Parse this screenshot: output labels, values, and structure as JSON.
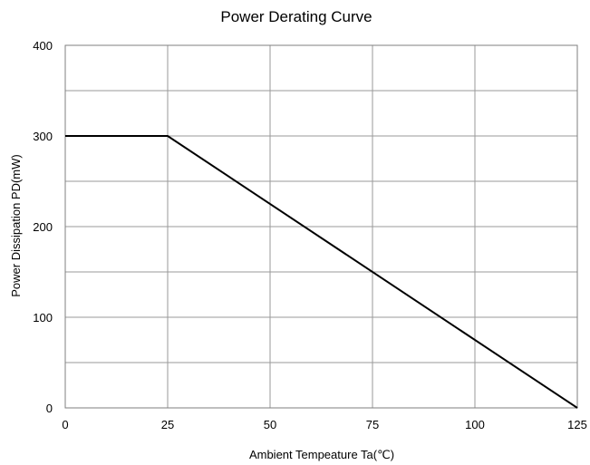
{
  "chart_data": {
    "type": "line",
    "title": "Power Derating Curve",
    "xlabel": "Ambient Tempeature Ta(℃)",
    "ylabel": "Power Dissipation  PD(mW)",
    "xlim": [
      0,
      125
    ],
    "ylim": [
      0,
      400
    ],
    "x_ticks": [
      "0",
      "25",
      "50",
      "75",
      "100",
      "125"
    ],
    "y_ticks": [
      "0",
      "100",
      "200",
      "300",
      "400"
    ],
    "grid": true,
    "series": [
      {
        "x": [
          0,
          25,
          125
        ],
        "y": [
          300,
          300,
          0
        ],
        "color": "#000000"
      }
    ]
  }
}
